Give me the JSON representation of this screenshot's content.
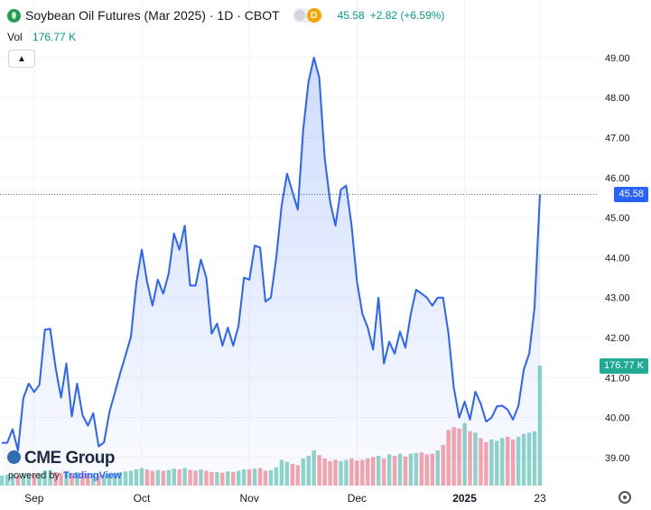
{
  "header": {
    "title": "Soybean Oil Futures (Mar 2025) · 1D · CBOT",
    "badge_letter": "D",
    "last_price": "45.58",
    "change": "+2.82 (+6.59%)"
  },
  "volume": {
    "label": "Vol",
    "value": "176.77 K"
  },
  "price_badge": "45.58",
  "volume_badge": "176.77 K",
  "branding": {
    "name": "CME Group",
    "powered_by": "powered by",
    "tv": "TradingView"
  },
  "icons": {
    "symbol": "leaf-icon",
    "collapse": "chevron-up-icon",
    "settings": "gear-icon",
    "brand": "globe-icon"
  },
  "colors": {
    "line": "#2962ff",
    "up": "#089981",
    "down": "#f23645",
    "text": "#131722"
  },
  "chart_data": {
    "type": "area",
    "x_tick_labels": [
      "Sep",
      "Oct",
      "Nov",
      "Dec",
      "2025",
      "23"
    ],
    "y_tick_labels": [
      "39.00",
      "40.00",
      "41.00",
      "42.00",
      "43.00",
      "44.00",
      "45.00",
      "46.00",
      "47.00",
      "48.00",
      "49.00"
    ],
    "ylim": [
      38.3,
      49.2
    ],
    "grid": true,
    "last_value": 45.58,
    "last_volume_k": 176.77,
    "x_tick_index": [
      6,
      26,
      46,
      66,
      86,
      100
    ],
    "series": [
      {
        "values": [
          39.37,
          39.37,
          39.71,
          39.18,
          40.48,
          40.85,
          40.64,
          40.82,
          42.2,
          42.22,
          41.25,
          40.5,
          41.35,
          40.03,
          40.85,
          40.06,
          39.8,
          40.11,
          39.28,
          39.38,
          40.14,
          40.62,
          41.11,
          41.56,
          42.02,
          43.36,
          44.2,
          43.4,
          42.8,
          43.45,
          43.1,
          43.6,
          44.6,
          44.2,
          44.8,
          43.3,
          43.3,
          43.95,
          43.5,
          42.1,
          42.35,
          41.8,
          42.25,
          41.8,
          42.3,
          43.5,
          43.45,
          44.3,
          44.25,
          42.9,
          43.0,
          44.0,
          45.3,
          46.1,
          45.65,
          45.2,
          47.2,
          48.4,
          49.0,
          48.5,
          46.5,
          45.4,
          44.8,
          45.7,
          45.8,
          44.8,
          43.4,
          42.6,
          42.25,
          41.7,
          43.0,
          41.35,
          41.9,
          41.6,
          42.15,
          41.75,
          42.6,
          43.2,
          43.1,
          43.0,
          42.8,
          43.0,
          43.0,
          42.1,
          40.75,
          40.0,
          40.4,
          39.95,
          40.65,
          40.35,
          39.9,
          40.0,
          40.28,
          40.3,
          40.2,
          39.95,
          40.3,
          41.2,
          41.6,
          42.75,
          45.58
        ]
      }
    ],
    "volume_k": [
      15,
      16,
      17,
      15,
      18,
      18,
      17,
      18,
      22,
      23,
      20,
      18,
      21,
      18,
      20,
      18,
      17,
      18,
      16,
      16,
      18,
      19,
      20,
      21,
      22,
      24,
      26,
      24,
      22,
      23,
      22,
      23,
      25,
      24,
      26,
      23,
      22,
      24,
      22,
      20,
      20,
      19,
      21,
      20,
      22,
      24,
      24,
      25,
      26,
      22,
      23,
      27,
      38,
      35,
      32,
      30,
      40,
      44,
      52,
      45,
      40,
      36,
      38,
      36,
      38,
      40,
      37,
      38,
      40,
      42,
      44,
      40,
      46,
      44,
      47,
      43,
      47,
      48,
      49,
      46,
      47,
      52,
      60,
      82,
      86,
      84,
      92,
      80,
      78,
      70,
      64,
      68,
      66,
      70,
      72,
      68,
      72,
      76,
      78,
      80,
      176.77
    ],
    "volume_direction": [
      "up",
      "up",
      "up",
      "down",
      "up",
      "up",
      "down",
      "up",
      "up",
      "up",
      "down",
      "down",
      "up",
      "down",
      "up",
      "down",
      "down",
      "up",
      "down",
      "up",
      "up",
      "up",
      "up",
      "up",
      "up",
      "up",
      "up",
      "down",
      "down",
      "up",
      "down",
      "up",
      "up",
      "down",
      "up",
      "down",
      "down",
      "up",
      "down",
      "down",
      "up",
      "down",
      "up",
      "down",
      "up",
      "up",
      "down",
      "up",
      "down",
      "down",
      "up",
      "up",
      "up",
      "up",
      "down",
      "down",
      "up",
      "up",
      "up",
      "down",
      "down",
      "down",
      "down",
      "up",
      "up",
      "down",
      "down",
      "down",
      "down",
      "down",
      "up",
      "down",
      "up",
      "down",
      "up",
      "down",
      "up",
      "up",
      "down",
      "down",
      "down",
      "up",
      "down",
      "down",
      "down",
      "down",
      "up",
      "down",
      "up",
      "down",
      "down",
      "up",
      "up",
      "up",
      "down",
      "down",
      "up",
      "up",
      "up",
      "up",
      "up"
    ]
  }
}
